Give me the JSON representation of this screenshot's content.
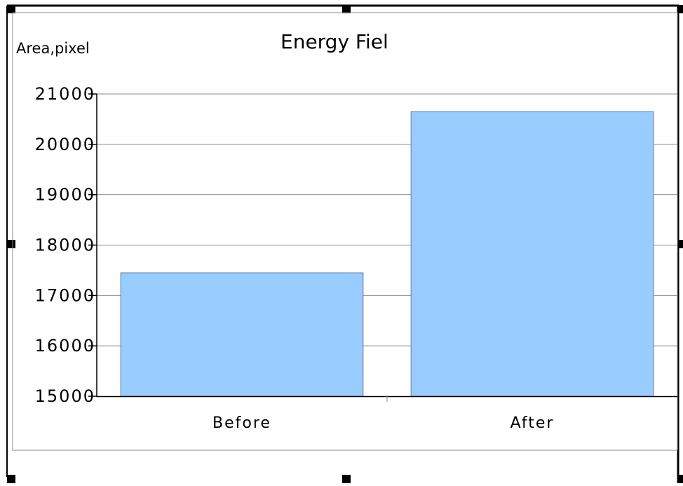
{
  "chart_data": {
    "type": "bar",
    "title": "Energy  Fiel",
    "ylabel": "Area,pixel",
    "xlabel": "",
    "categories": [
      "Before",
      "After"
    ],
    "values": [
      17450,
      20650
    ],
    "ylim": [
      15000,
      21000
    ],
    "yticks": [
      15000,
      16000,
      17000,
      18000,
      19000,
      20000,
      21000
    ],
    "ytick_labels": [
      "15000",
      "16000",
      "17000",
      "18000",
      "19000",
      "20000",
      "21000"
    ],
    "grid": true,
    "legend": "none",
    "bar_color": "#99ccff",
    "bar_edge_color": "#5f7f9f",
    "grid_color": "#8c8c8c"
  },
  "selection": {
    "frame_color": "#000000",
    "handle_color": "#000000"
  }
}
